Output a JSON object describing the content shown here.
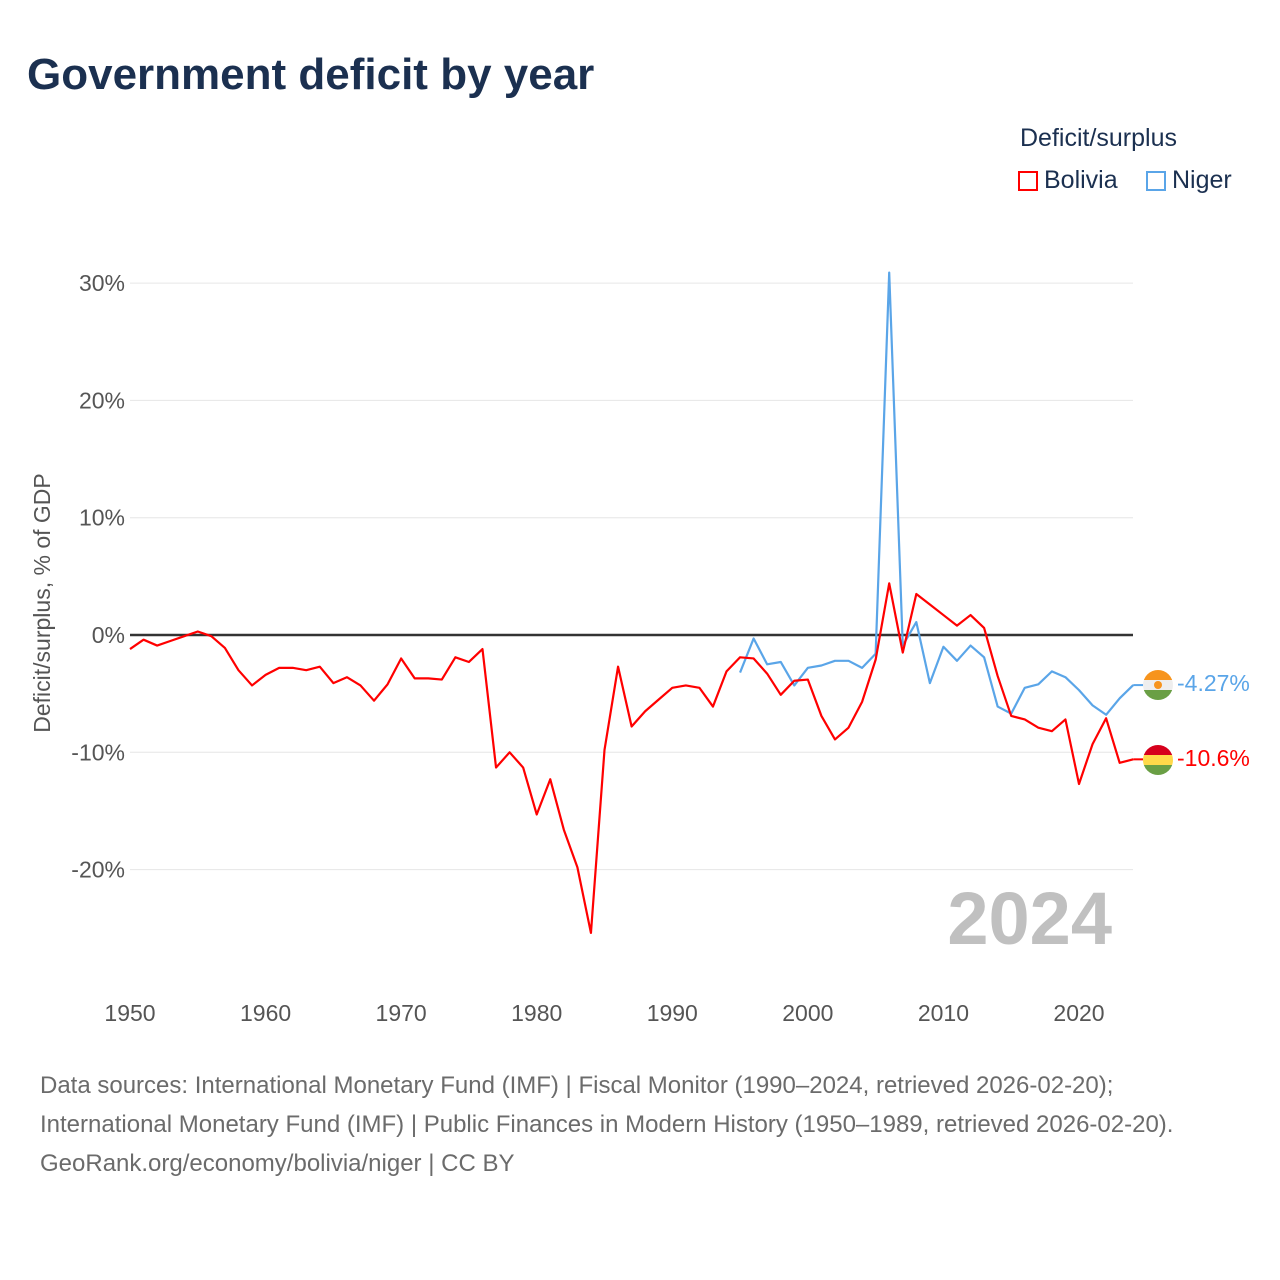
{
  "title": "Government deficit by year",
  "legend": {
    "title": "Deficit/surplus",
    "items": [
      {
        "name": "Bolivia",
        "color": "#ff0000"
      },
      {
        "name": "Niger",
        "color": "#5aa5e8"
      }
    ]
  },
  "year_label": "2024",
  "end_labels": {
    "niger": "-4.27%",
    "bolivia": "-10.6%"
  },
  "footer": {
    "sources": "Data sources: International Monetary Fund (IMF) | Fiscal Monitor (1990–2024, retrieved 2026-02-20); International Monetary Fund (IMF) | Public Finances in Modern History (1950–1989, retrieved 2026-02-20).",
    "credit": "GeoRank.org/economy/bolivia/niger | CC BY"
  },
  "chart_data": {
    "type": "line",
    "title": "Government deficit by year",
    "ylabel": "Deficit/surplus, % of GDP",
    "xlabel": "",
    "xlim": [
      1950,
      2024
    ],
    "ylim": [
      -30,
      30
    ],
    "x_ticks": [
      1950,
      1960,
      1970,
      1980,
      1990,
      2000,
      2010,
      2020
    ],
    "x_tick_labels": [
      "1950",
      "1960",
      "1970",
      "1980",
      "1990",
      "2000",
      "2010",
      "2020"
    ],
    "y_ticks": [
      -20,
      -10,
      0,
      10,
      20,
      30
    ],
    "y_tick_labels": [
      "-20%",
      "-10%",
      "0%",
      "10%",
      "20%",
      "30%"
    ],
    "legend_position": "top-right",
    "grid": true,
    "series": [
      {
        "name": "Bolivia",
        "color": "#ff0000",
        "start_year": 1950,
        "values": [
          -1.2,
          -0.4,
          -0.9,
          -0.5,
          -0.1,
          0.3,
          -0.1,
          -1.1,
          -3.0,
          -4.3,
          -3.4,
          -2.8,
          -2.8,
          -3.0,
          -2.7,
          -4.1,
          -3.6,
          -4.3,
          -5.6,
          -4.2,
          -2.0,
          -3.7,
          -3.7,
          -3.8,
          -1.9,
          -2.3,
          -1.2,
          -11.3,
          -10.0,
          -11.3,
          -15.3,
          -12.3,
          -16.6,
          -19.8,
          -25.4,
          -9.8,
          -2.7,
          -7.8,
          -6.5,
          -5.5,
          -4.5,
          -4.3,
          -4.5,
          -6.1,
          -3.1,
          -1.9,
          -2.0,
          -3.3,
          -5.1,
          -3.9,
          -3.8,
          -6.9,
          -8.9,
          -7.9,
          -5.7,
          -2.1,
          4.4,
          -1.5,
          3.5,
          2.6,
          1.7,
          0.8,
          1.7,
          0.6,
          -3.5,
          -6.9,
          -7.2,
          -7.9,
          -8.2,
          -7.2,
          -12.7,
          -9.3,
          -7.1,
          -10.9,
          -10.6
        ]
      },
      {
        "name": "Niger",
        "color": "#5aa5e8",
        "start_year": 1995,
        "values": [
          -3.2,
          -0.3,
          -2.5,
          -2.3,
          -4.3,
          -2.8,
          -2.6,
          -2.2,
          -2.2,
          -2.8,
          -1.6,
          30.9,
          -0.9,
          1.1,
          -4.1,
          -1.0,
          -2.2,
          -0.9,
          -1.9,
          -6.1,
          -6.7,
          -4.5,
          -4.2,
          -3.1,
          -3.6,
          -4.7,
          -6.0,
          -6.8,
          -5.4,
          -4.27
        ]
      }
    ]
  }
}
